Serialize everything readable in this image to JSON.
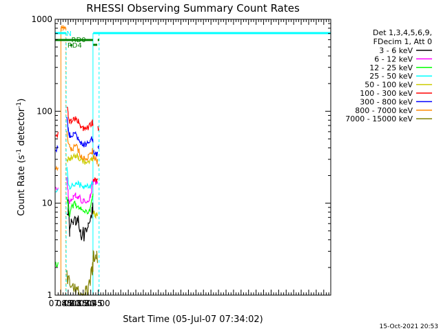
{
  "chart_data": {
    "type": "line",
    "title": "RHESSI Observing Summary Count Rates",
    "xlabel": "Start Time (05-Jul-07 07:34:02)",
    "ylabel_main": "Count Rate (s",
    "ylabel_sup1": "-1",
    "ylabel_mid": " detector",
    "ylabel_sup2": "-1",
    "ylabel_end": ")",
    "y_scale": "log",
    "ylim": [
      1,
      1000
    ],
    "x_range_minutes": [
      454,
      1004
    ],
    "xticks": [
      {
        "label": "07:45",
        "minute": 465
      },
      {
        "label": "08:00",
        "minute": 480
      },
      {
        "label": "08:15",
        "minute": 495
      },
      {
        "label": "08:30",
        "minute": 510
      },
      {
        "label": "08:45",
        "minute": 525
      },
      {
        "label": "09:00",
        "minute": 540
      }
    ],
    "yticks": [
      {
        "label": "1",
        "value": 1
      },
      {
        "label": "10",
        "value": 10
      },
      {
        "label": "100",
        "value": 100
      },
      {
        "label": "1000",
        "value": 1000
      }
    ],
    "legend_header": [
      "Det 1,3,4,5,6,9,",
      "FDecim 1, Att 0"
    ],
    "series": [
      {
        "name": "3 - 6 keV",
        "color": "#000000",
        "points": [
          [
            477.5,
            9
          ],
          [
            480,
            9
          ],
          [
            483,
            5
          ],
          [
            486,
            6
          ],
          [
            490,
            6.5
          ],
          [
            495,
            7
          ],
          [
            500,
            6.8
          ],
          [
            505,
            5
          ],
          [
            510,
            4.5
          ],
          [
            515,
            4.5
          ],
          [
            520,
            5
          ],
          [
            524,
            6
          ],
          [
            527,
            8
          ],
          [
            528.5,
            9.5
          ],
          [
            529.5,
            9
          ]
        ]
      },
      {
        "name": "6 - 12 keV",
        "color": "#ff00ff",
        "points": [
          [
            455,
            14
          ],
          [
            460,
            14
          ],
          [
            460.2,
            null
          ],
          [
            477.5,
            18
          ],
          [
            480,
            13
          ],
          [
            483,
            10
          ],
          [
            486,
            11
          ],
          [
            490,
            11.5
          ],
          [
            495,
            12
          ],
          [
            500,
            11.8
          ],
          [
            505,
            11
          ],
          [
            510,
            10.5
          ],
          [
            515,
            10.5
          ],
          [
            520,
            11
          ],
          [
            524,
            12
          ],
          [
            527,
            14
          ],
          [
            528.5,
            17
          ],
          [
            529.5,
            17
          ],
          [
            530,
            17
          ],
          [
            532,
            17
          ],
          [
            535,
            17
          ],
          [
            537,
            17
          ],
          [
            538.5,
            17
          ]
        ]
      },
      {
        "name": "12 - 25 keV",
        "color": "#00ff00",
        "points": [
          [
            455,
            2.2
          ],
          [
            460,
            2.2
          ],
          [
            460.2,
            null
          ],
          [
            477.5,
            11
          ],
          [
            480,
            10
          ],
          [
            483,
            7.5
          ],
          [
            486,
            8.5
          ],
          [
            490,
            9.5
          ],
          [
            495,
            9.8
          ],
          [
            500,
            9
          ],
          [
            505,
            8.5
          ],
          [
            510,
            8
          ],
          [
            515,
            8
          ],
          [
            520,
            8.2
          ],
          [
            524,
            8.8
          ],
          [
            527,
            10.5
          ],
          [
            528.5,
            12
          ],
          [
            529.5,
            12
          ]
        ]
      },
      {
        "name": "25 - 50 keV",
        "color": "#00ffff",
        "points": [
          [
            455,
            13
          ],
          [
            460,
            13.5
          ],
          [
            460.2,
            null
          ],
          [
            477.5,
            25
          ],
          [
            480,
            17
          ],
          [
            483,
            15
          ],
          [
            486,
            15.5
          ],
          [
            490,
            16
          ],
          [
            495,
            16.5
          ],
          [
            500,
            16
          ],
          [
            505,
            15.8
          ],
          [
            510,
            15.5
          ],
          [
            515,
            15.5
          ],
          [
            520,
            15.5
          ],
          [
            524,
            15.5
          ],
          [
            527,
            16
          ],
          [
            528.5,
            17
          ],
          [
            529.5,
            17
          ]
        ]
      },
      {
        "name": "50 - 100 keV",
        "color": "#cccc00",
        "points": [
          [
            477.5,
            30
          ],
          [
            480,
            31
          ],
          [
            482,
            30
          ],
          [
            484,
            30
          ],
          [
            486,
            31
          ],
          [
            490,
            32
          ],
          [
            495,
            33
          ],
          [
            500,
            32
          ],
          [
            505,
            30
          ],
          [
            510,
            29
          ],
          [
            515,
            28
          ],
          [
            520,
            28
          ],
          [
            524,
            28.5
          ],
          [
            527,
            29
          ],
          [
            528.5,
            29
          ],
          [
            529.5,
            29
          ],
          [
            529.8,
            null
          ],
          [
            530,
            8
          ],
          [
            532,
            8
          ],
          [
            535,
            7.5
          ],
          [
            537,
            7.5
          ],
          [
            538.5,
            7.5
          ]
        ]
      },
      {
        "name": "100 - 300 keV",
        "color": "#ff0000",
        "points": [
          [
            455,
            55
          ],
          [
            460,
            55
          ],
          [
            460.2,
            null
          ],
          [
            477.5,
            120
          ],
          [
            480,
            90
          ],
          [
            483,
            78
          ],
          [
            486,
            78
          ],
          [
            490,
            80
          ],
          [
            495,
            82
          ],
          [
            500,
            77
          ],
          [
            505,
            68
          ],
          [
            510,
            65
          ],
          [
            515,
            65
          ],
          [
            520,
            67
          ],
          [
            524,
            70
          ],
          [
            527,
            75
          ],
          [
            528.5,
            75
          ],
          [
            529.5,
            70
          ],
          [
            529.8,
            null
          ],
          [
            530,
            18
          ],
          [
            532,
            17.5
          ],
          [
            535,
            17.5
          ],
          [
            537,
            17.5
          ],
          [
            538.5,
            17.5
          ],
          [
            538.8,
            null
          ],
          [
            539.5,
            65
          ],
          [
            541,
            62
          ]
        ]
      },
      {
        "name": "300 - 800 keV",
        "color": "#0000ff",
        "points": [
          [
            455,
            40
          ],
          [
            460,
            38
          ],
          [
            460.2,
            null
          ],
          [
            477.5,
            85
          ],
          [
            480,
            62
          ],
          [
            483,
            55
          ],
          [
            486,
            54
          ],
          [
            490,
            55
          ],
          [
            495,
            56
          ],
          [
            500,
            52
          ],
          [
            505,
            46
          ],
          [
            510,
            44
          ],
          [
            515,
            44
          ],
          [
            520,
            45
          ],
          [
            524,
            47
          ],
          [
            527,
            50
          ],
          [
            528.5,
            50
          ],
          [
            529.5,
            48
          ],
          [
            529.8,
            null
          ],
          [
            530,
            36
          ],
          [
            532,
            35
          ],
          [
            535,
            34
          ],
          [
            537,
            34
          ],
          [
            538.5,
            34
          ],
          [
            538.8,
            null
          ],
          [
            539.5,
            42
          ],
          [
            541,
            40
          ]
        ]
      },
      {
        "name": "800 - 7000 keV",
        "color": "#ff8800",
        "points": [
          [
            455,
            25
          ],
          [
            460,
            24
          ],
          [
            460.2,
            null
          ],
          [
            477.5,
            60
          ],
          [
            480,
            47
          ],
          [
            483,
            41
          ],
          [
            486,
            38
          ],
          [
            490,
            39
          ],
          [
            495,
            42
          ],
          [
            500,
            38
          ],
          [
            505,
            33
          ],
          [
            510,
            31
          ],
          [
            515,
            31
          ],
          [
            520,
            32
          ],
          [
            524,
            34
          ],
          [
            527,
            37
          ],
          [
            528.5,
            37
          ],
          [
            529.5,
            35
          ],
          [
            529.8,
            null
          ],
          [
            530,
            32
          ],
          [
            532,
            31
          ],
          [
            535,
            30
          ],
          [
            537,
            29
          ],
          [
            538.5,
            28
          ],
          [
            538.8,
            null
          ],
          [
            539.5,
            27
          ],
          [
            541,
            25
          ]
        ]
      },
      {
        "name": "7000 - 15000 keV",
        "color": "#808000",
        "points": [
          [
            477.5,
            1.6
          ],
          [
            480,
            1.6
          ],
          [
            483,
            1.3
          ],
          [
            486,
            1.5
          ],
          [
            490,
            1.4
          ],
          [
            495,
            1.2
          ],
          [
            500,
            1.1
          ],
          [
            505,
            1.1
          ],
          [
            510,
            1.1
          ],
          [
            515,
            1.1
          ],
          [
            520,
            1.2
          ],
          [
            524,
            1.5
          ],
          [
            527,
            1.8
          ],
          [
            528.5,
            2
          ],
          [
            529.5,
            2
          ],
          [
            530,
            2.5
          ],
          [
            532,
            2.5
          ],
          [
            535,
            2.5
          ],
          [
            537,
            2.5
          ],
          [
            538.5,
            2.5
          ]
        ]
      }
    ],
    "annotations": [
      {
        "text": "S",
        "color": "#ff8800"
      },
      {
        "text": "N",
        "color": "#00ffff"
      },
      {
        "text": "RD0",
        "color": "#008000"
      },
      {
        "text": "RD4",
        "color": "#008000"
      }
    ],
    "timestamp": "15-Oct-2021 20:53"
  }
}
